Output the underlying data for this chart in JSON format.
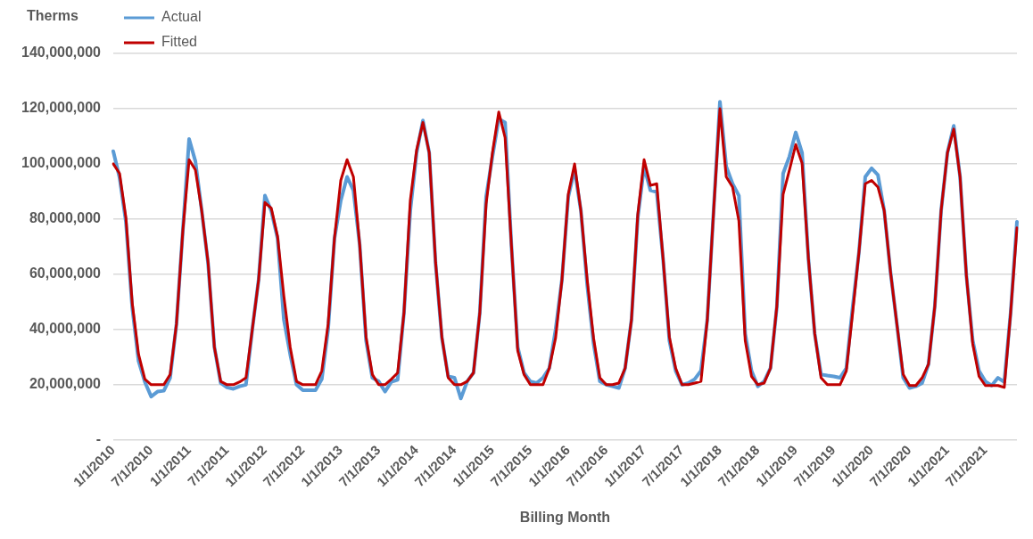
{
  "chart_data": {
    "type": "line",
    "xlabel": "Billing Month",
    "ylabel": "Therms",
    "categories": [
      "1/1/2010",
      null,
      null,
      null,
      null,
      null,
      "7/1/2010",
      null,
      null,
      null,
      null,
      null,
      "1/1/2011",
      null,
      null,
      null,
      null,
      null,
      "7/1/2011",
      null,
      null,
      null,
      null,
      null,
      "1/1/2012",
      null,
      null,
      null,
      null,
      null,
      "7/1/2012",
      null,
      null,
      null,
      null,
      null,
      "1/1/2013",
      null,
      null,
      null,
      null,
      null,
      "7/1/2013",
      null,
      null,
      null,
      null,
      null,
      "1/1/2014",
      null,
      null,
      null,
      null,
      null,
      "7/1/2014",
      null,
      null,
      null,
      null,
      null,
      "1/1/2015",
      null,
      null,
      null,
      null,
      null,
      "7/1/2015",
      null,
      null,
      null,
      null,
      null,
      "1/1/2016",
      null,
      null,
      null,
      null,
      null,
      "7/1/2016",
      null,
      null,
      null,
      null,
      null,
      "1/1/2017",
      null,
      null,
      null,
      null,
      null,
      "7/1/2017",
      null,
      null,
      null,
      null,
      null,
      "1/1/2018",
      null,
      null,
      null,
      null,
      null,
      "7/1/2018",
      null,
      null,
      null,
      null,
      null,
      "1/1/2019",
      null,
      null,
      null,
      null,
      null,
      "7/1/2019",
      null,
      null,
      null,
      null,
      null,
      "1/1/2020",
      null,
      null,
      null,
      null,
      null,
      "7/1/2020",
      null,
      null,
      null,
      null,
      null,
      "1/1/2021",
      null,
      null,
      null,
      null,
      null,
      "7/1/2021",
      null,
      null,
      null,
      null,
      null
    ],
    "series": [
      {
        "name": "Actual",
        "color": "#5b9bd5",
        "values": [
          104600000,
          95000000,
          79000000,
          48000000,
          28600000,
          21000000,
          15700000,
          17500000,
          17800000,
          22500000,
          42000000,
          75500000,
          109000000,
          100900000,
          83000000,
          64000000,
          33600000,
          20600000,
          19000000,
          18500000,
          19400000,
          20000000,
          40000000,
          58000000,
          88500000,
          83000000,
          73000000,
          43500000,
          31000000,
          20000000,
          18000000,
          18000000,
          18000000,
          22000000,
          40000000,
          73000000,
          86700000,
          95300000,
          90400000,
          70600000,
          36000000,
          22500000,
          21200000,
          17500000,
          21000000,
          21800000,
          46000000,
          83000000,
          104000000,
          115700000,
          104000000,
          64000000,
          37000000,
          23000000,
          22500000,
          15000000,
          21200000,
          24300000,
          46000000,
          88000000,
          102700000,
          116300000,
          115000000,
          70600000,
          33600000,
          24300000,
          21200000,
          20600000,
          22500000,
          26000000,
          40000000,
          58000000,
          88000000,
          98000000,
          83000000,
          56000000,
          35000000,
          21200000,
          20000000,
          19400000,
          18800000,
          26000000,
          43500000,
          80500000,
          99000000,
          90400000,
          89800000,
          65700000,
          36000000,
          25000000,
          20000000,
          20600000,
          22000000,
          25000000,
          43500000,
          83000000,
          122500000,
          99000000,
          92800000,
          88500000,
          38500000,
          25000000,
          19400000,
          21200000,
          26000000,
          48000000,
          96500000,
          102700000,
          111400000,
          104000000,
          65700000,
          38500000,
          23700000,
          23300000,
          23000000,
          22500000,
          26000000,
          48000000,
          68000000,
          95300000,
          98400000,
          96000000,
          83000000,
          60700000,
          42000000,
          22500000,
          18800000,
          19400000,
          20600000,
          27400000,
          48400000,
          83000000,
          104000000,
          113800000,
          95300000,
          59500000,
          36000000,
          25000000,
          21200000,
          19700000,
          22500000,
          21000000,
          46000000,
          79000000
        ]
      },
      {
        "name": "Fitted",
        "color": "#c00000",
        "values": [
          100000000,
          96500000,
          80500000,
          49600000,
          31000000,
          22000000,
          20000000,
          20000000,
          20000000,
          23700000,
          42000000,
          75500000,
          101500000,
          97800000,
          83000000,
          64400000,
          33600000,
          21200000,
          20000000,
          20000000,
          21000000,
          22500000,
          40000000,
          58000000,
          86000000,
          84000000,
          73700000,
          52000000,
          33600000,
          21200000,
          20000000,
          20000000,
          20000000,
          25000000,
          42000000,
          73000000,
          94000000,
          101500000,
          95300000,
          70600000,
          37300000,
          23700000,
          20000000,
          20000000,
          22000000,
          24300000,
          46000000,
          86700000,
          105000000,
          115000000,
          104000000,
          64400000,
          37300000,
          22500000,
          20000000,
          20000000,
          21200000,
          24300000,
          46000000,
          85400000,
          104000000,
          118800000,
          109500000,
          70600000,
          32300000,
          23700000,
          20000000,
          20000000,
          20000000,
          26000000,
          37000000,
          58000000,
          89000000,
          100000000,
          83000000,
          58000000,
          37000000,
          22500000,
          20000000,
          20000000,
          20600000,
          26000000,
          43500000,
          81700000,
          101500000,
          92200000,
          92800000,
          65700000,
          37300000,
          26000000,
          20000000,
          20000000,
          20600000,
          21200000,
          43500000,
          83000000,
          120000000,
          95300000,
          91600000,
          79300000,
          36000000,
          23000000,
          20000000,
          20600000,
          26000000,
          48400000,
          89000000,
          97800000,
          107000000,
          100200000,
          65700000,
          38500000,
          22500000,
          20000000,
          20000000,
          20000000,
          25000000,
          46000000,
          68000000,
          92800000,
          94000000,
          91600000,
          83000000,
          60700000,
          42000000,
          23700000,
          19700000,
          19700000,
          22500000,
          27400000,
          48400000,
          83000000,
          104000000,
          112600000,
          95300000,
          59500000,
          34800000,
          23000000,
          19700000,
          19700000,
          19700000,
          19000000,
          46000000,
          76800000
        ]
      }
    ],
    "ylim": [
      0,
      140000000
    ],
    "yticks": [
      {
        "value": 0,
        "label": "-"
      },
      {
        "value": 20000000,
        "label": "20,000,000"
      },
      {
        "value": 40000000,
        "label": "40,000,000"
      },
      {
        "value": 60000000,
        "label": "60,000,000"
      },
      {
        "value": 80000000,
        "label": "80,000,000"
      },
      {
        "value": 100000000,
        "label": "100,000,000"
      },
      {
        "value": 120000000,
        "label": "120,000,000"
      },
      {
        "value": 140000000,
        "label": "140,000,000"
      }
    ],
    "grid": "y",
    "legend": "top left",
    "marker": "none",
    "line_style": "solid"
  }
}
